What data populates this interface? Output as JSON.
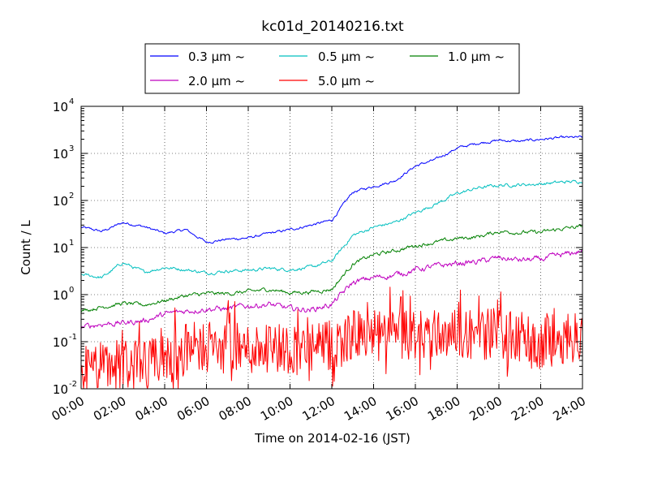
{
  "chart_data": {
    "type": "line",
    "title": "kc01d_20140216.txt",
    "xlabel": "Time on 2014-02-16 (JST)",
    "ylabel": "Count / L",
    "yscale": "log",
    "ylim": [
      0.01,
      10000
    ],
    "xlim": [
      "00:00",
      "24:00"
    ],
    "x_tick_labels": [
      "00:00",
      "02:00",
      "04:00",
      "06:00",
      "08:00",
      "10:00",
      "12:00",
      "14:00",
      "16:00",
      "18:00",
      "20:00",
      "22:00",
      "24:00"
    ],
    "y_tick_labels": [
      {
        "base": "10",
        "exp": "-2"
      },
      {
        "base": "10",
        "exp": "-1"
      },
      {
        "base": "10",
        "exp": "0"
      },
      {
        "base": "10",
        "exp": "1"
      },
      {
        "base": "10",
        "exp": "2"
      },
      {
        "base": "10",
        "exp": "3"
      },
      {
        "base": "10",
        "exp": "4"
      }
    ],
    "grid": true,
    "legend_position": "top-center",
    "x": [
      "00:00",
      "01:00",
      "02:00",
      "03:00",
      "04:00",
      "05:00",
      "06:00",
      "07:00",
      "08:00",
      "09:00",
      "10:00",
      "11:00",
      "12:00",
      "13:00",
      "14:00",
      "15:00",
      "16:00",
      "17:00",
      "18:00",
      "19:00",
      "20:00",
      "21:00",
      "22:00",
      "23:00",
      "24:00"
    ],
    "series": [
      {
        "name": "0.3 μm ~",
        "color": "#0000ff",
        "noise": 0.04,
        "values": [
          27,
          22,
          34,
          28,
          20,
          24,
          13,
          15,
          16,
          20,
          24,
          30,
          38,
          150,
          200,
          260,
          540,
          750,
          1300,
          1650,
          1900,
          1800,
          2000,
          2150,
          2200
        ]
      },
      {
        "name": "0.5 μm ~",
        "color": "#00bfbf",
        "noise": 0.05,
        "values": [
          2.7,
          2.3,
          4.8,
          3.0,
          3.8,
          3.4,
          2.9,
          3.2,
          3.3,
          3.6,
          3.4,
          3.8,
          5.2,
          18,
          27,
          34,
          55,
          85,
          140,
          185,
          210,
          215,
          225,
          245,
          255
        ]
      },
      {
        "name": "1.0 μm ~",
        "color": "#008000",
        "noise": 0.06,
        "values": [
          0.45,
          0.55,
          0.65,
          0.6,
          0.75,
          0.95,
          1.05,
          1.05,
          1.15,
          1.3,
          1.1,
          1.15,
          1.3,
          4.5,
          7.0,
          8.5,
          11,
          13,
          15.5,
          17,
          22,
          21,
          21,
          25,
          28
        ]
      },
      {
        "name": "2.0 μm ~",
        "color": "#bf00bf",
        "noise": 0.09,
        "values": [
          0.2,
          0.24,
          0.25,
          0.28,
          0.38,
          0.45,
          0.5,
          0.5,
          0.58,
          0.62,
          0.5,
          0.48,
          0.62,
          1.8,
          2.3,
          2.6,
          3.4,
          4.0,
          4.6,
          5.0,
          6.0,
          5.4,
          5.6,
          6.8,
          8.5
        ]
      },
      {
        "name": "5.0 μm ~",
        "color": "#ff0000",
        "noise": 0.55,
        "values": [
          0.025,
          0.03,
          0.035,
          0.03,
          0.04,
          0.07,
          0.08,
          0.07,
          0.07,
          0.08,
          0.07,
          0.07,
          0.08,
          0.14,
          0.13,
          0.13,
          0.14,
          0.15,
          0.16,
          0.14,
          0.16,
          0.1,
          0.09,
          0.12,
          0.14
        ]
      }
    ]
  }
}
